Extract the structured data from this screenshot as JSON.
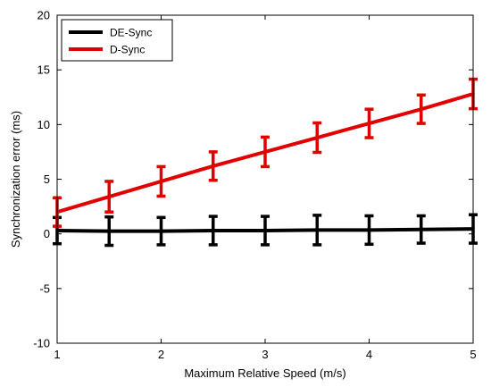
{
  "chart_data": {
    "type": "line",
    "title": "",
    "xlabel": "Maximum Relative Speed (m/s)",
    "ylabel": "Synchronization error (ms)",
    "xlim": [
      1,
      5
    ],
    "ylim": [
      -10,
      20
    ],
    "x_ticks": [
      "1",
      "2",
      "3",
      "4",
      "5"
    ],
    "y_ticks": [
      "-10",
      "-5",
      "0",
      "5",
      "10",
      "15",
      "20"
    ],
    "grid": false,
    "legend_position": "top-left",
    "x": [
      1,
      1.5,
      2,
      2.5,
      3,
      3.5,
      4,
      4.5,
      5
    ],
    "series": [
      {
        "name": "DE-Sync",
        "color": "#000000",
        "values": [
          0.3,
          0.25,
          0.25,
          0.3,
          0.3,
          0.35,
          0.35,
          0.4,
          0.45
        ],
        "error": [
          1.2,
          1.3,
          1.25,
          1.3,
          1.3,
          1.35,
          1.3,
          1.25,
          1.3
        ]
      },
      {
        "name": "D-Sync",
        "color": "#e00000",
        "values": [
          2.0,
          3.4,
          4.8,
          6.2,
          7.5,
          8.8,
          10.1,
          11.4,
          12.8
        ],
        "error": [
          1.3,
          1.4,
          1.35,
          1.3,
          1.35,
          1.35,
          1.3,
          1.3,
          1.35
        ]
      }
    ]
  }
}
